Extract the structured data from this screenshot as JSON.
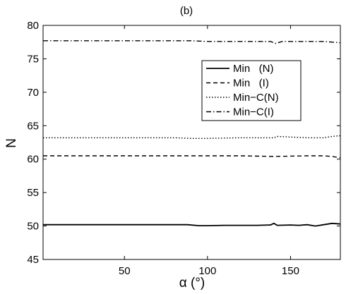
{
  "chart_data": {
    "type": "line",
    "title": "(b)",
    "xlabel": "α (°)",
    "ylabel": "N",
    "xlim": [
      1,
      180
    ],
    "ylim": [
      45,
      80
    ],
    "xticks": [
      50,
      100,
      150
    ],
    "yticks": [
      45,
      50,
      55,
      60,
      65,
      70,
      75,
      80
    ],
    "grid": false,
    "legend_position": "top-right",
    "series": [
      {
        "name": "Min   (N)",
        "line_style": "solid",
        "color": "#000000",
        "x": [
          1,
          10,
          20,
          30,
          40,
          50,
          60,
          70,
          80,
          88,
          95,
          100,
          110,
          120,
          130,
          138,
          140,
          142,
          150,
          155,
          160,
          165,
          170,
          175,
          180
        ],
        "y": [
          50.2,
          50.2,
          50.2,
          50.2,
          50.2,
          50.2,
          50.2,
          50.2,
          50.2,
          50.2,
          50.05,
          50.05,
          50.1,
          50.1,
          50.1,
          50.15,
          50.4,
          50.1,
          50.15,
          50.1,
          50.2,
          50.0,
          50.2,
          50.4,
          50.3
        ]
      },
      {
        "name": "Min   (I)",
        "line_style": "dashed",
        "color": "#000000",
        "x": [
          1,
          20,
          40,
          60,
          80,
          90,
          100,
          120,
          140,
          160,
          170,
          175,
          180
        ],
        "y": [
          60.5,
          60.5,
          60.5,
          60.5,
          60.5,
          60.5,
          60.5,
          60.5,
          60.4,
          60.5,
          60.5,
          60.4,
          60.2
        ]
      },
      {
        "name": "Min−C(N)",
        "line_style": "dotted",
        "color": "#000000",
        "x": [
          1,
          20,
          40,
          60,
          80,
          90,
          100,
          120,
          140,
          142,
          160,
          170,
          175,
          180
        ],
        "y": [
          63.2,
          63.2,
          63.2,
          63.2,
          63.2,
          63.1,
          63.1,
          63.2,
          63.2,
          63.4,
          63.2,
          63.2,
          63.4,
          63.5
        ]
      },
      {
        "name": "Min−C(I)",
        "line_style": "dashdot",
        "color": "#000000",
        "x": [
          1,
          20,
          40,
          60,
          80,
          90,
          100,
          120,
          138,
          141,
          145,
          150,
          160,
          170,
          175,
          180
        ],
        "y": [
          77.7,
          77.7,
          77.7,
          77.7,
          77.7,
          77.7,
          77.6,
          77.6,
          77.6,
          77.3,
          77.6,
          77.6,
          77.6,
          77.6,
          77.5,
          77.4
        ]
      }
    ]
  }
}
